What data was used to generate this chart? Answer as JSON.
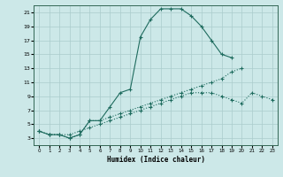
{
  "title": "",
  "xlabel": "Humidex (Indice chaleur)",
  "bg_color": "#cce8e8",
  "grid_color": "#aacccc",
  "line_color": "#1e6b5e",
  "xlim": [
    -0.5,
    23.5
  ],
  "ylim": [
    2,
    22
  ],
  "xticks": [
    0,
    1,
    2,
    3,
    4,
    5,
    6,
    7,
    8,
    9,
    10,
    11,
    12,
    13,
    14,
    15,
    16,
    17,
    18,
    19,
    20,
    21,
    22,
    23
  ],
  "yticks": [
    3,
    5,
    7,
    9,
    11,
    13,
    15,
    17,
    19,
    21
  ],
  "line1_x": [
    0,
    1,
    2,
    3,
    4,
    5,
    6,
    7,
    8,
    9,
    10,
    11,
    12,
    13,
    14,
    15,
    16,
    17,
    18,
    19
  ],
  "line1_y": [
    4,
    3.5,
    3.5,
    3,
    3.5,
    5.5,
    5.5,
    7.5,
    9.5,
    10,
    17.5,
    20,
    21.5,
    21.5,
    21.5,
    20.5,
    19,
    17,
    15,
    14.5
  ],
  "line2_x": [
    0,
    1,
    2,
    3,
    4,
    5,
    6,
    7,
    8,
    9,
    10,
    11,
    12,
    13,
    14,
    15,
    16,
    17,
    18,
    19,
    20
  ],
  "line2_y": [
    4,
    3.5,
    3.5,
    3,
    3.5,
    5.5,
    5.5,
    6,
    6.5,
    7,
    7.5,
    8,
    8.5,
    9,
    9.5,
    10,
    10.5,
    11,
    11.5,
    12.5,
    13
  ],
  "line3_x": [
    0,
    1,
    2,
    3,
    4,
    5,
    6,
    7,
    8,
    9,
    10,
    11,
    12,
    13,
    14,
    15,
    16,
    17,
    18,
    19,
    20,
    21,
    22,
    23
  ],
  "line3_y": [
    4,
    3.5,
    3.5,
    3.5,
    4,
    4.5,
    5,
    5.5,
    6,
    6.5,
    7,
    7.5,
    8,
    8.5,
    9,
    9.5,
    9.5,
    9.5,
    9,
    8.5,
    8,
    9.5,
    9,
    8.5
  ]
}
